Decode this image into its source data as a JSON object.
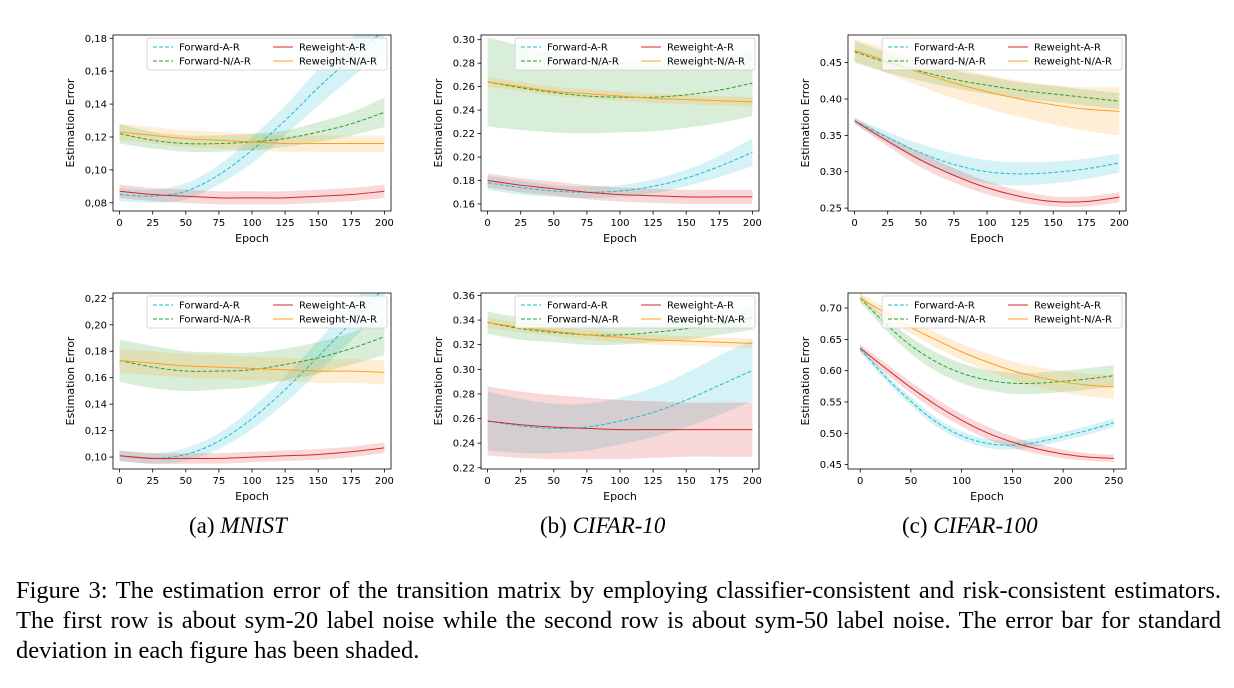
{
  "subcaptions": [
    {
      "label": "(a) ",
      "name": "MNIST"
    },
    {
      "label": "(b) ",
      "name": "CIFAR-10"
    },
    {
      "label": "(c) ",
      "name": "CIFAR-100"
    }
  ],
  "figure_caption": "Figure 3: The estimation error of the transition matrix by employing classifier-consistent and risk-consistent estimators. The first row is about sym-20 label noise while the second row is about sym-50 label noise. The error bar for standard deviation in each figure has been shaded.",
  "series_styles": [
    {
      "name": "Forward-A-R",
      "color": "#17becf",
      "dash": true
    },
    {
      "name": "Forward-N/A-R",
      "color": "#2ca02c",
      "dash": true
    },
    {
      "name": "Reweight-A-R",
      "color": "#d62728",
      "dash": false
    },
    {
      "name": "Reweight-N/A-R",
      "color": "#ff9f1c",
      "dash": false
    }
  ],
  "chart_data": [
    {
      "id": "mnist-sym20",
      "type": "line",
      "xlabel": "Epoch",
      "ylabel": "Estimation Error",
      "xlim": [
        -5,
        205
      ],
      "ylim": [
        0.075,
        0.182
      ],
      "xticks": [
        0,
        25,
        50,
        75,
        100,
        125,
        150,
        175,
        200
      ],
      "yticks": [
        0.08,
        0.1,
        0.12,
        0.14,
        0.16,
        0.18
      ],
      "ytick_labels": [
        "0,08",
        "0,10",
        "0,12",
        "0,14",
        "0,16",
        "0,18"
      ],
      "x": [
        0,
        25,
        50,
        75,
        100,
        125,
        150,
        175,
        200
      ],
      "series": [
        {
          "name": "Forward-A-R",
          "values": [
            0.085,
            0.084,
            0.087,
            0.097,
            0.112,
            0.13,
            0.15,
            0.168,
            0.185
          ],
          "band": [
            0.004,
            0.004,
            0.005,
            0.006,
            0.008,
            0.009,
            0.011,
            0.012,
            0.013
          ]
        },
        {
          "name": "Forward-N/A-R",
          "values": [
            0.122,
            0.118,
            0.116,
            0.116,
            0.117,
            0.119,
            0.123,
            0.128,
            0.135
          ],
          "band": [
            0.006,
            0.005,
            0.005,
            0.005,
            0.005,
            0.005,
            0.006,
            0.007,
            0.009
          ]
        },
        {
          "name": "Reweight-A-R",
          "values": [
            0.087,
            0.085,
            0.084,
            0.083,
            0.083,
            0.083,
            0.084,
            0.085,
            0.087
          ],
          "band": [
            0.004,
            0.004,
            0.004,
            0.004,
            0.004,
            0.004,
            0.004,
            0.004,
            0.004
          ]
        },
        {
          "name": "Reweight-N/A-R",
          "values": [
            0.123,
            0.121,
            0.119,
            0.118,
            0.117,
            0.116,
            0.116,
            0.116,
            0.116
          ],
          "band": [
            0.005,
            0.005,
            0.005,
            0.005,
            0.005,
            0.005,
            0.005,
            0.005,
            0.005
          ]
        }
      ]
    },
    {
      "id": "cifar10-sym20",
      "type": "line",
      "xlabel": "Epoch",
      "ylabel": "Estimation Error",
      "xlim": [
        -5,
        205
      ],
      "ylim": [
        0.154,
        0.304
      ],
      "xticks": [
        0,
        25,
        50,
        75,
        100,
        125,
        150,
        175,
        200
      ],
      "yticks": [
        0.16,
        0.18,
        0.2,
        0.22,
        0.24,
        0.26,
        0.28,
        0.3
      ],
      "ytick_labels": [
        "0.16",
        "0.18",
        "0.20",
        "0.22",
        "0.24",
        "0.26",
        "0.28",
        "0.30"
      ],
      "x": [
        0,
        25,
        50,
        75,
        100,
        125,
        150,
        175,
        200
      ],
      "series": [
        {
          "name": "Forward-A-R",
          "values": [
            0.178,
            0.174,
            0.171,
            0.17,
            0.171,
            0.175,
            0.182,
            0.192,
            0.204
          ],
          "band": [
            0.006,
            0.006,
            0.005,
            0.005,
            0.005,
            0.006,
            0.007,
            0.009,
            0.012
          ]
        },
        {
          "name": "Forward-N/A-R",
          "values": [
            0.264,
            0.259,
            0.255,
            0.252,
            0.251,
            0.251,
            0.253,
            0.257,
            0.263
          ],
          "band": [
            0.038,
            0.036,
            0.034,
            0.032,
            0.03,
            0.029,
            0.028,
            0.028,
            0.028
          ]
        },
        {
          "name": "Reweight-A-R",
          "values": [
            0.18,
            0.176,
            0.173,
            0.17,
            0.168,
            0.167,
            0.166,
            0.166,
            0.166
          ],
          "band": [
            0.006,
            0.006,
            0.006,
            0.006,
            0.006,
            0.006,
            0.006,
            0.006,
            0.006
          ]
        },
        {
          "name": "Reweight-N/A-R",
          "values": [
            0.264,
            0.26,
            0.256,
            0.254,
            0.252,
            0.25,
            0.249,
            0.248,
            0.247
          ],
          "band": [
            0.004,
            0.004,
            0.004,
            0.004,
            0.004,
            0.004,
            0.004,
            0.004,
            0.004
          ]
        }
      ]
    },
    {
      "id": "cifar100-sym20",
      "type": "line",
      "xlabel": "Epoch",
      "ylabel": "Estimation Error",
      "xlim": [
        -5,
        205
      ],
      "ylim": [
        0.246,
        0.488
      ],
      "xticks": [
        0,
        25,
        50,
        75,
        100,
        125,
        150,
        175,
        200
      ],
      "yticks": [
        0.25,
        0.3,
        0.35,
        0.4,
        0.45
      ],
      "ytick_labels": [
        "0.25",
        "0.30",
        "0.35",
        "0.40",
        "0.45"
      ],
      "x": [
        0,
        25,
        50,
        75,
        100,
        125,
        150,
        175,
        200
      ],
      "series": [
        {
          "name": "Forward-A-R",
          "values": [
            0.37,
            0.347,
            0.326,
            0.31,
            0.3,
            0.297,
            0.299,
            0.304,
            0.312
          ],
          "band": [
            0.004,
            0.008,
            0.012,
            0.015,
            0.016,
            0.016,
            0.015,
            0.014,
            0.013
          ]
        },
        {
          "name": "Forward-N/A-R",
          "values": [
            0.465,
            0.45,
            0.438,
            0.427,
            0.419,
            0.412,
            0.407,
            0.402,
            0.397
          ],
          "band": [
            0.015,
            0.014,
            0.013,
            0.012,
            0.012,
            0.011,
            0.011,
            0.011,
            0.011
          ]
        },
        {
          "name": "Reweight-A-R",
          "values": [
            0.37,
            0.342,
            0.316,
            0.295,
            0.278,
            0.266,
            0.259,
            0.259,
            0.265
          ],
          "band": [
            0.004,
            0.007,
            0.01,
            0.01,
            0.009,
            0.008,
            0.007,
            0.007,
            0.007
          ]
        },
        {
          "name": "Reweight-N/A-R",
          "values": [
            0.467,
            0.452,
            0.436,
            0.422,
            0.41,
            0.4,
            0.392,
            0.386,
            0.383
          ],
          "band": [
            0.015,
            0.017,
            0.019,
            0.021,
            0.023,
            0.025,
            0.027,
            0.03,
            0.033
          ]
        }
      ]
    },
    {
      "id": "mnist-sym50",
      "type": "line",
      "xlabel": "Epoch",
      "ylabel": "Estimation Error",
      "xlim": [
        -5,
        205
      ],
      "ylim": [
        0.091,
        0.224
      ],
      "xticks": [
        0,
        25,
        50,
        75,
        100,
        125,
        150,
        175,
        200
      ],
      "yticks": [
        0.1,
        0.12,
        0.14,
        0.16,
        0.18,
        0.2,
        0.22
      ],
      "ytick_labels": [
        "0,10",
        "0,12",
        "0,14",
        "0,16",
        "0,18",
        "0,20",
        "0,22"
      ],
      "x": [
        0,
        25,
        50,
        75,
        100,
        125,
        150,
        175,
        200
      ],
      "series": [
        {
          "name": "Forward-A-R",
          "values": [
            0.101,
            0.099,
            0.102,
            0.112,
            0.129,
            0.151,
            0.176,
            0.202,
            0.228
          ],
          "band": [
            0.004,
            0.004,
            0.005,
            0.006,
            0.008,
            0.01,
            0.012,
            0.014,
            0.015
          ]
        },
        {
          "name": "Forward-N/A-R",
          "values": [
            0.173,
            0.168,
            0.165,
            0.165,
            0.166,
            0.17,
            0.175,
            0.182,
            0.191
          ],
          "band": [
            0.016,
            0.016,
            0.015,
            0.014,
            0.013,
            0.012,
            0.012,
            0.012,
            0.014
          ]
        },
        {
          "name": "Reweight-A-R",
          "values": [
            0.101,
            0.099,
            0.099,
            0.099,
            0.1,
            0.101,
            0.102,
            0.104,
            0.107
          ],
          "band": [
            0.004,
            0.004,
            0.004,
            0.004,
            0.004,
            0.004,
            0.004,
            0.004,
            0.004
          ]
        },
        {
          "name": "Reweight-N/A-R",
          "values": [
            0.173,
            0.171,
            0.169,
            0.168,
            0.167,
            0.166,
            0.165,
            0.165,
            0.164
          ],
          "band": [
            0.009,
            0.009,
            0.009,
            0.009,
            0.009,
            0.009,
            0.009,
            0.009,
            0.009
          ]
        }
      ]
    },
    {
      "id": "cifar10-sym50",
      "type": "line",
      "xlabel": "Epoch",
      "ylabel": "Estimation Error",
      "xlim": [
        -5,
        205
      ],
      "ylim": [
        0.219,
        0.362
      ],
      "xticks": [
        0,
        25,
        50,
        75,
        100,
        125,
        150,
        175,
        200
      ],
      "yticks": [
        0.22,
        0.24,
        0.26,
        0.28,
        0.3,
        0.32,
        0.34,
        0.36
      ],
      "ytick_labels": [
        "0.22",
        "0.24",
        "0.26",
        "0.28",
        "0.30",
        "0.32",
        "0.34",
        "0.36"
      ],
      "x": [
        0,
        25,
        50,
        75,
        100,
        125,
        150,
        175,
        200
      ],
      "series": [
        {
          "name": "Forward-A-R",
          "values": [
            0.258,
            0.254,
            0.252,
            0.253,
            0.258,
            0.265,
            0.275,
            0.287,
            0.299
          ],
          "band": [
            0.024,
            0.022,
            0.02,
            0.019,
            0.019,
            0.02,
            0.022,
            0.024,
            0.025
          ]
        },
        {
          "name": "Forward-N/A-R",
          "values": [
            0.338,
            0.333,
            0.33,
            0.328,
            0.328,
            0.33,
            0.333,
            0.337,
            0.342
          ],
          "band": [
            0.009,
            0.009,
            0.008,
            0.008,
            0.008,
            0.008,
            0.009,
            0.009,
            0.01
          ]
        },
        {
          "name": "Reweight-A-R",
          "values": [
            0.258,
            0.255,
            0.253,
            0.252,
            0.251,
            0.251,
            0.251,
            0.251,
            0.251
          ],
          "band": [
            0.028,
            0.027,
            0.026,
            0.025,
            0.024,
            0.023,
            0.022,
            0.022,
            0.022
          ]
        },
        {
          "name": "Reweight-N/A-R",
          "values": [
            0.338,
            0.334,
            0.331,
            0.328,
            0.326,
            0.324,
            0.323,
            0.322,
            0.321
          ],
          "band": [
            0.004,
            0.004,
            0.004,
            0.004,
            0.004,
            0.004,
            0.004,
            0.004,
            0.004
          ]
        }
      ]
    },
    {
      "id": "cifar100-sym50",
      "type": "line",
      "xlabel": "Epoch",
      "ylabel": "Estimation Error",
      "xlim": [
        -12,
        262
      ],
      "ylim": [
        0.443,
        0.724
      ],
      "xticks": [
        0,
        50,
        100,
        150,
        200,
        250
      ],
      "yticks": [
        0.45,
        0.5,
        0.55,
        0.6,
        0.65,
        0.7
      ],
      "ytick_labels": [
        "0.45",
        "0.50",
        "0.55",
        "0.60",
        "0.65",
        "0.70"
      ],
      "x": [
        0,
        25,
        50,
        75,
        100,
        125,
        150,
        175,
        200,
        225,
        250
      ],
      "series": [
        {
          "name": "Forward-A-R",
          "values": [
            0.635,
            0.59,
            0.551,
            0.518,
            0.496,
            0.484,
            0.481,
            0.486,
            0.495,
            0.505,
            0.517
          ],
          "band": [
            0.005,
            0.006,
            0.007,
            0.007,
            0.007,
            0.007,
            0.007,
            0.007,
            0.007,
            0.007,
            0.007
          ]
        },
        {
          "name": "Forward-N/A-R",
          "values": [
            0.716,
            0.675,
            0.64,
            0.614,
            0.596,
            0.585,
            0.58,
            0.58,
            0.583,
            0.587,
            0.592
          ],
          "band": [
            0.006,
            0.01,
            0.013,
            0.015,
            0.016,
            0.016,
            0.017,
            0.017,
            0.017,
            0.017,
            0.017
          ]
        },
        {
          "name": "Reweight-A-R",
          "values": [
            0.636,
            0.604,
            0.573,
            0.545,
            0.521,
            0.501,
            0.486,
            0.475,
            0.467,
            0.462,
            0.46
          ],
          "band": [
            0.006,
            0.008,
            0.009,
            0.01,
            0.01,
            0.01,
            0.009,
            0.008,
            0.007,
            0.006,
            0.006
          ]
        },
        {
          "name": "Reweight-N/A-R",
          "values": [
            0.716,
            0.692,
            0.669,
            0.649,
            0.63,
            0.614,
            0.6,
            0.59,
            0.582,
            0.577,
            0.574
          ],
          "band": [
            0.008,
            0.009,
            0.01,
            0.012,
            0.013,
            0.014,
            0.015,
            0.016,
            0.017,
            0.018,
            0.019
          ]
        }
      ]
    }
  ]
}
